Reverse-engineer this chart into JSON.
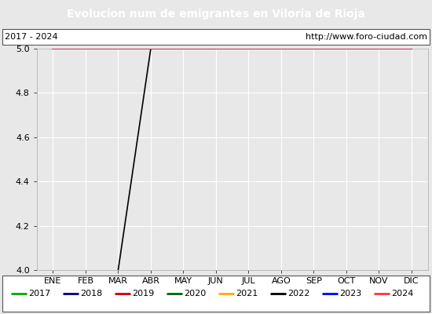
{
  "title": "Evolucion num de emigrantes en Viloria de Rioja",
  "title_bg": "#4f81bd",
  "title_color": "white",
  "subtitle_left": "2017 - 2024",
  "subtitle_right": "http://www.foro-ciudad.com",
  "months": [
    "ENE",
    "FEB",
    "MAR",
    "ABR",
    "MAY",
    "JUN",
    "JUL",
    "AGO",
    "SEP",
    "OCT",
    "NOV",
    "DIC"
  ],
  "ylim": [
    4.0,
    5.0
  ],
  "yticks": [
    4.0,
    4.2,
    4.4,
    4.6,
    4.8,
    5.0
  ],
  "series": [
    {
      "year": 2017,
      "color": "#00aa00",
      "data": null
    },
    {
      "year": 2018,
      "color": "#000080",
      "data": null
    },
    {
      "year": 2019,
      "color": "#cc0000",
      "data": [
        5.0,
        5.0,
        5.0,
        5.0,
        5.0,
        5.0,
        5.0,
        5.0,
        5.0,
        5.0,
        5.0,
        5.0
      ]
    },
    {
      "year": 2020,
      "color": "#006400",
      "data": null
    },
    {
      "year": 2021,
      "color": "#ffaa00",
      "data": null
    },
    {
      "year": 2022,
      "color": "#000000",
      "data": [
        null,
        null,
        4.0,
        5.0,
        5.0,
        5.0,
        5.0,
        5.0,
        5.0,
        5.0,
        5.0,
        5.0
      ]
    },
    {
      "year": 2023,
      "color": "#0000ff",
      "data": [
        5.0,
        5.0,
        5.0,
        5.0,
        5.0,
        5.0,
        5.0,
        5.0,
        5.0,
        5.0,
        5.0,
        5.0
      ]
    },
    {
      "year": 2024,
      "color": "#ff3333",
      "data": [
        5.0,
        5.0,
        5.0,
        5.0,
        5.0,
        5.0,
        5.0,
        5.0,
        5.0,
        5.0,
        5.0,
        5.0
      ]
    }
  ],
  "bg_color": "#e8e8e8",
  "plot_bg": "#e8e8e8",
  "grid_color": "#ffffff",
  "box_bg": "#ffffff",
  "title_fontsize": 10,
  "tick_fontsize": 8,
  "legend_fontsize": 8
}
